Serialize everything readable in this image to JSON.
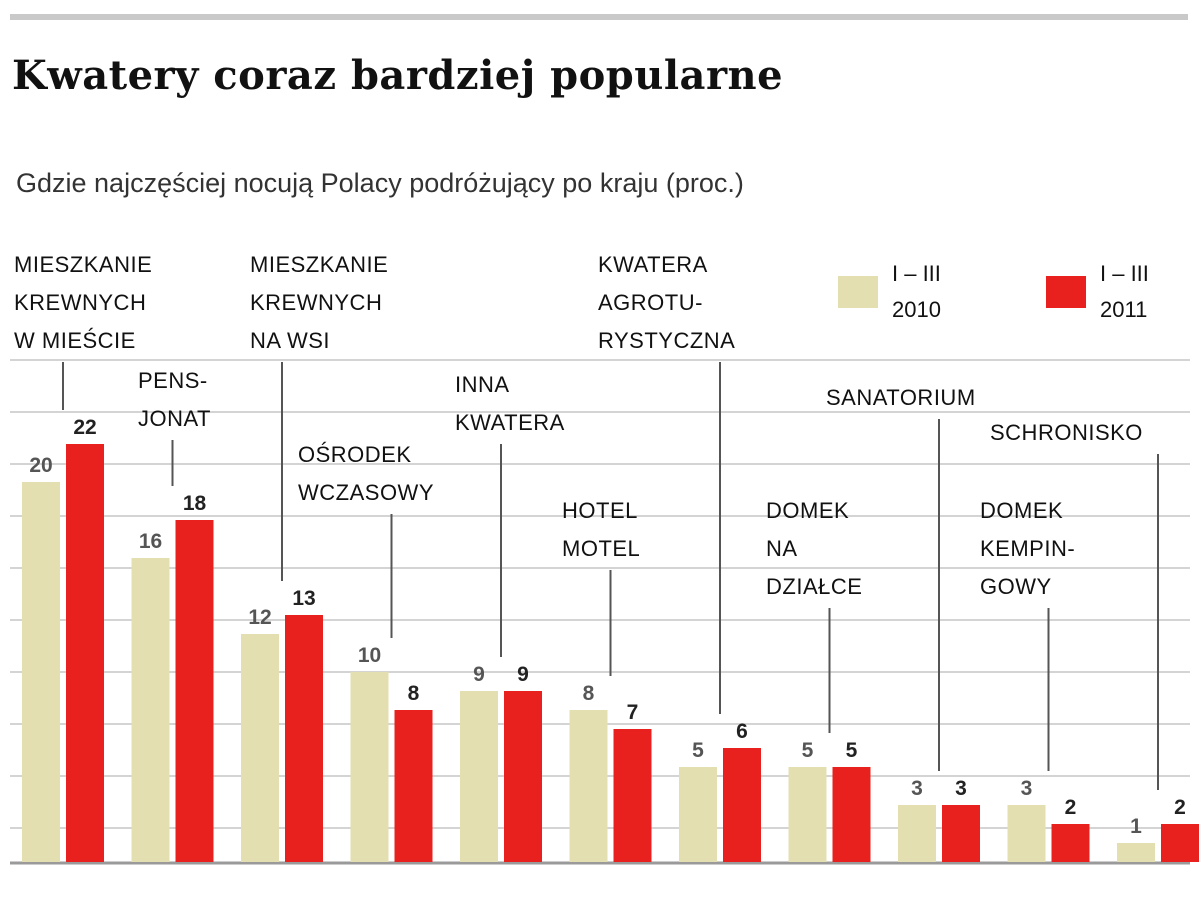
{
  "title": "Kwatery coraz bardziej popularne",
  "subtitle": "Gdzie najczęściej nocują Polacy podróżujący po kraju (proc.)",
  "colors": {
    "series1": "#e3dfb1",
    "series2": "#e8201e",
    "grid": "#d4d4d4",
    "leader": "#555555"
  },
  "chart_data": {
    "type": "bar",
    "title": "Kwatery coraz bardziej popularne",
    "subtitle": "Gdzie najczęściej nocują Polacy podróżujący po kraju (proc.)",
    "xlabel": "",
    "ylabel": "",
    "ylim": [
      0,
      23
    ],
    "grid": true,
    "legend": "top-right",
    "categories": [
      "MIESZKANIE KREWNYCH W MIEŚCIE",
      "PENSJONAT",
      "MIESZKANIE KREWNYCH NA WSI",
      "OŚRODEK WCZASOWY",
      "INNA KWATERA",
      "HOTEL MOTEL",
      "KWATERA AGROTURYSTYCZNA",
      "DOMEK NA DZIAŁCE",
      "SANATORIUM",
      "DOMEK KEMPINGOWY",
      "SCHRONISKO"
    ],
    "category_label_lines": [
      [
        "MIESZKANIE",
        "KREWNYCH",
        "W MIEŚCIE"
      ],
      [
        "PENS-",
        "JONAT"
      ],
      [
        "MIESZKANIE",
        "KREWNYCH",
        "NA WSI"
      ],
      [
        "OŚRODEK",
        "WCZASOWY"
      ],
      [
        "INNA",
        "KWATERA"
      ],
      [
        "HOTEL",
        "MOTEL"
      ],
      [
        "KWATERA",
        "AGROTU-",
        "RYSTYCZNA"
      ],
      [
        "DOMEK",
        "NA",
        "DZIAŁCE"
      ],
      [
        "SANATORIUM"
      ],
      [
        "DOMEK",
        "KEMPIN-",
        "GOWY"
      ],
      [
        "SCHRONISKO"
      ]
    ],
    "series": [
      {
        "name": "I – III 2010",
        "name_lines": [
          "I – III",
          "2010"
        ],
        "values": [
          20,
          16,
          12,
          10,
          9,
          8,
          5,
          5,
          3,
          3,
          1
        ]
      },
      {
        "name": "I – III 2011",
        "name_lines": [
          "I – III",
          "2011"
        ],
        "values": [
          22,
          18,
          13,
          8,
          9,
          7,
          6,
          5,
          3,
          2,
          2
        ]
      }
    ]
  }
}
